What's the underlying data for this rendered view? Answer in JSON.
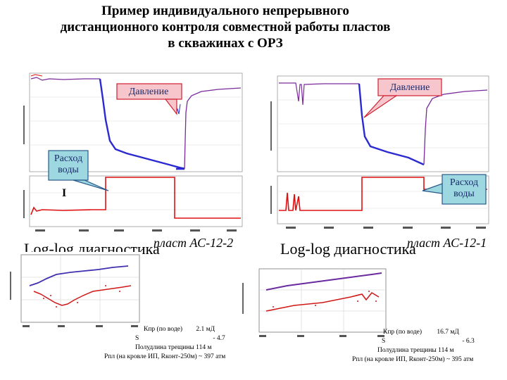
{
  "title": {
    "line1": "Пример индивидуального непрерывного",
    "line2": "дистанционного контроля совместной работы пластов",
    "line3": "в скважинах с ОРЗ"
  },
  "left": {
    "pressure_label": "Давление",
    "water_label_line1": "Расход",
    "water_label_line2": "воды",
    "marker": "I",
    "loglog": "Log-log диагностика",
    "plast": "пласт АС-12-2",
    "params": {
      "k_label": "Кпр (по воде)",
      "k_value": "2.1 мД",
      "s_label": "S",
      "s_value": "- 4.7",
      "frac": "Полудлина трещины  114 м",
      "ppl": "Рпл (на кровле ИП, Rконт-250м) ~ 397 атм"
    }
  },
  "right": {
    "pressure_label": "Давление",
    "water_label_line1": "Расход",
    "water_label_line2": "воды",
    "loglog": "Log-log диагностика",
    "plast": "пласт АС-12-1",
    "params": {
      "k_label": "Кпр (по воде)",
      "k_value": "16.7 мД",
      "s_label": "S",
      "s_value": "- 6.3",
      "frac": "Полудлина трещины  114 м",
      "ppl": "Рпл (на кровле ИП, Rконт-250м) ~ 395 атм"
    }
  },
  "colors": {
    "pressure_blue": "#2a2ad0",
    "pressure_purple": "#7a2a9a",
    "flow_red": "#e01010",
    "callout_fill": "#f6c6cc",
    "callout_border": "#d02030"
  }
}
